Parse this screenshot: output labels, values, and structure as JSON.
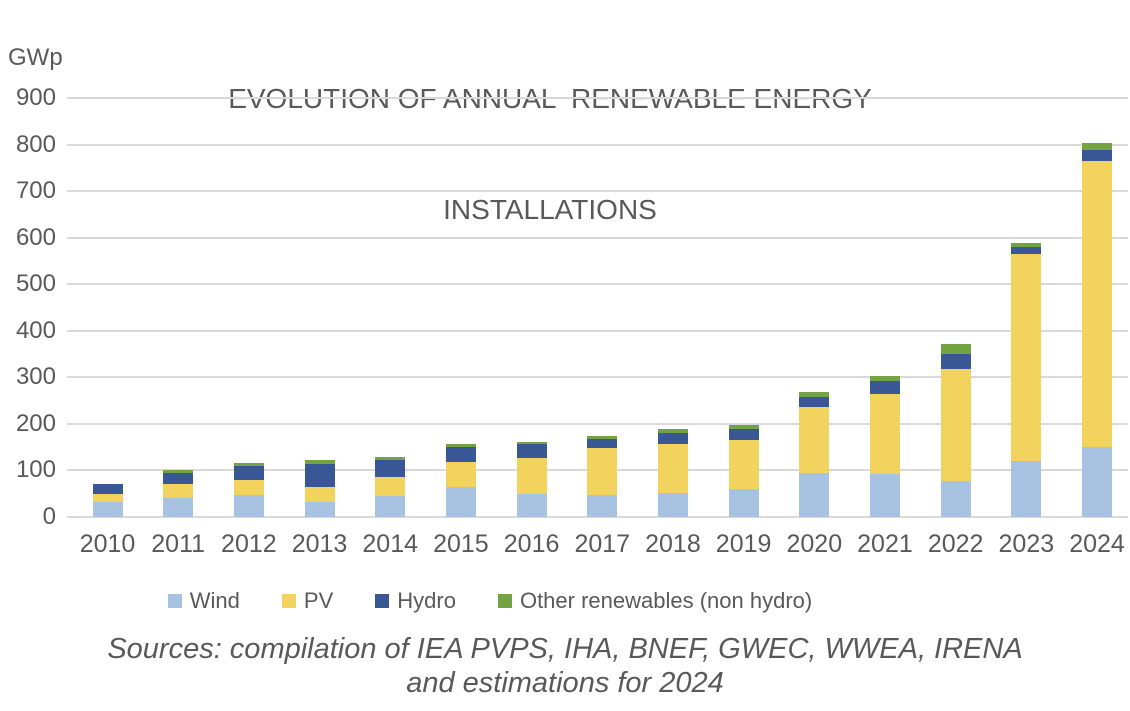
{
  "title": {
    "line1": "EVOLUTION OF ANNUAL  RENEWABLE ENERGY",
    "line2": "INSTALLATIONS"
  },
  "footer": {
    "sources_line1": "Sources: compilation of IEA PVPS, IHA, BNEF, GWEC, WWEA, IRENA",
    "sources_line2": "and estimations for 2024"
  },
  "colors": {
    "text": "#595959",
    "gridline": "#d9d9d9",
    "wind": "#a8c2e2",
    "pv": "#f2d35e",
    "hydro": "#3a5795",
    "other": "#74a344"
  },
  "chart_data": {
    "type": "bar",
    "stacked": true,
    "title": "EVOLUTION OF ANNUAL RENEWABLE ENERGY INSTALLATIONS",
    "xlabel": "",
    "ylabel": "GWp",
    "ylim": [
      0,
      900
    ],
    "ytick_interval": 100,
    "ytick_labels": [
      "0",
      "100",
      "200",
      "300",
      "400",
      "500",
      "600",
      "700",
      "800",
      "900"
    ],
    "grid": true,
    "legend_position": "bottom",
    "categories": [
      "2010",
      "2011",
      "2012",
      "2013",
      "2014",
      "2015",
      "2016",
      "2017",
      "2018",
      "2019",
      "2020",
      "2021",
      "2022",
      "2023",
      "2024"
    ],
    "series": [
      {
        "name": "Wind",
        "color": "#a8c2e2",
        "values": [
          32,
          40,
          47,
          33,
          46,
          65,
          50,
          48,
          51,
          61,
          95,
          93,
          78,
          120,
          150
        ]
      },
      {
        "name": "PV",
        "color": "#f2d35e",
        "values": [
          17,
          30,
          33,
          32,
          41,
          54,
          76,
          100,
          105,
          104,
          142,
          172,
          240,
          446,
          615
        ]
      },
      {
        "name": "Hydro",
        "color": "#3a5795",
        "values": [
          21,
          25,
          30,
          48,
          36,
          31,
          30,
          19,
          24,
          24,
          21,
          27,
          32,
          14,
          24
        ]
      },
      {
        "name": "Other renewables (non hydro)",
        "color": "#74a344",
        "values": [
          0,
          7,
          5,
          9,
          7,
          7,
          6,
          6,
          9,
          8,
          10,
          11,
          22,
          8,
          15
        ]
      }
    ],
    "totals": [
      70,
      102,
      115,
      122,
      130,
      157,
      162,
      173,
      189,
      197,
      268,
      303,
      372,
      588,
      804
    ]
  }
}
